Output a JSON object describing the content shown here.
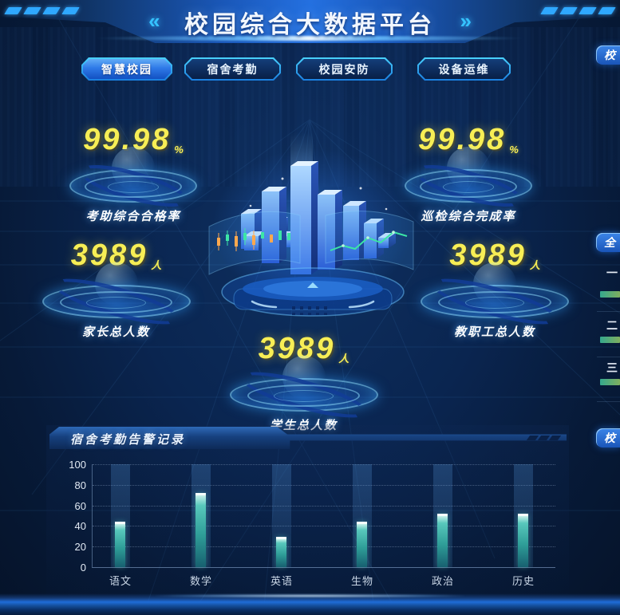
{
  "header": {
    "title": "校园综合大数据平台",
    "left_chevron": "«",
    "right_chevron": "»"
  },
  "tabs": [
    {
      "label": "智慧校园",
      "active": true
    },
    {
      "label": "宿舍考勤",
      "active": false
    },
    {
      "label": "校园安防",
      "active": false
    },
    {
      "label": "设备运维",
      "active": false
    }
  ],
  "stats": [
    {
      "value": "99.98",
      "unit": "%",
      "label": "考助综合合格率"
    },
    {
      "value": "99.98",
      "unit": "%",
      "label": "巡检综合完成率"
    },
    {
      "value": "3989",
      "unit": "人",
      "label": "家长总人数"
    },
    {
      "value": "3989",
      "unit": "人",
      "label": "教职工总人数"
    },
    {
      "value": "3989",
      "unit": "人",
      "label": "学生总人数"
    }
  ],
  "chart_panel": {
    "title": "宿舍考勤告警记录"
  },
  "chart_data": {
    "type": "bar",
    "title": "宿舍考勤告警记录",
    "categories": [
      "语文",
      "数学",
      "英语",
      "生物",
      "政治",
      "历史"
    ],
    "values": [
      42,
      70,
      27,
      42,
      50,
      50
    ],
    "xlabel": "",
    "ylabel": "",
    "ylim": [
      0,
      100
    ],
    "yticks": [
      0,
      20,
      40,
      60,
      80,
      100
    ],
    "grid": "horizontal-dotted",
    "legend": "none",
    "bar_color": "#45c8b8"
  },
  "right_panels": {
    "top_tab": "校",
    "middle_tab": "全",
    "bottom_tab": "校",
    "ranking": {
      "ranks": [
        "一",
        "二",
        "三"
      ]
    }
  },
  "colors": {
    "accent_cyan": "#38c6ff",
    "accent_blue": "#1e6fe0",
    "number_yellow": "#f7ee55",
    "bar_teal": "#45c8b8",
    "background": "#081c38"
  }
}
